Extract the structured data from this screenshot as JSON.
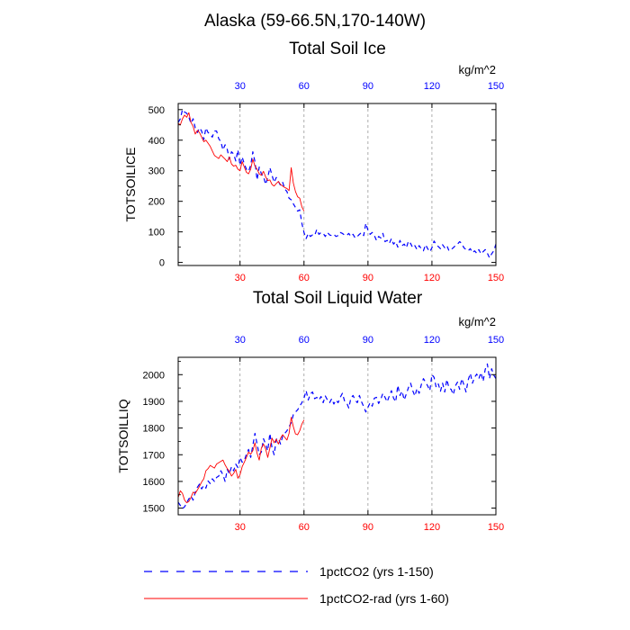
{
  "figure": {
    "title": "Alaska (59-66.5N,170-140W)"
  },
  "legend": {
    "placement": "bottom-left",
    "items": [
      {
        "label": "1pctCO2 (yrs 1-150)",
        "color": "#0000ff",
        "dash": "dashed"
      },
      {
        "label": "1pctCO2-rad (yrs 1-60)",
        "color": "#ff0000",
        "dash": "solid"
      }
    ]
  },
  "colors": {
    "bottom_ticks": "#ff0000",
    "top_ticks": "#0000ff",
    "gridline": "#999999"
  },
  "chart_data": [
    {
      "type": "line",
      "title": "Total Soil Ice",
      "ylabel": "TOTSOILICE",
      "units": "kg/m^2",
      "xlim": [
        1,
        150
      ],
      "ylim": [
        -10,
        520
      ],
      "xticks": [
        30,
        60,
        90,
        120,
        150
      ],
      "yticks": [
        0,
        100,
        200,
        300,
        400,
        500
      ],
      "grid": "vertical dashed at x ticks",
      "series": [
        {
          "name": "1pctCO2 (yrs 1-150)",
          "color": "#0000ff",
          "dash": "dashed",
          "x_start": 1,
          "values": [
            458,
            470,
            500,
            492,
            488,
            475,
            455,
            470,
            440,
            425,
            440,
            430,
            402,
            440,
            425,
            420,
            410,
            430,
            430,
            405,
            395,
            368,
            385,
            370,
            338,
            362,
            355,
            332,
            368,
            318,
            345,
            322,
            305,
            298,
            318,
            362,
            330,
            270,
            312,
            290,
            282,
            255,
            278,
            310,
            285,
            262,
            278,
            265,
            252,
            262,
            240,
            232,
            210,
            205,
            192,
            180,
            168,
            172,
            128,
            98,
            78,
            95,
            85,
            90,
            88,
            108,
            92,
            98,
            95,
            85,
            98,
            90,
            88,
            92,
            85,
            88,
            98,
            95,
            90,
            88,
            95,
            85,
            92,
            80,
            85,
            92,
            98,
            88,
            128,
            105,
            92,
            98,
            88,
            72,
            85,
            80,
            95,
            68,
            72,
            62,
            78,
            60,
            68,
            50,
            72,
            55,
            60,
            48,
            70,
            62,
            48,
            55,
            42,
            55,
            45,
            38,
            58,
            45,
            35,
            48,
            70,
            58,
            52,
            45,
            58,
            48,
            55,
            38,
            42,
            48,
            55,
            60,
            68,
            62,
            48,
            42,
            38,
            45,
            32,
            38,
            30,
            42,
            28,
            35,
            42,
            30,
            15,
            28,
            38,
            60
          ]
        },
        {
          "name": "1pctCO2-rad (yrs 1-60)",
          "color": "#ff0000",
          "dash": "solid",
          "x_start": 1,
          "values": [
            455,
            450,
            470,
            482,
            475,
            490,
            458,
            445,
            420,
            432,
            425,
            410,
            395,
            400,
            390,
            380,
            365,
            350,
            345,
            340,
            352,
            345,
            338,
            330,
            345,
            322,
            315,
            318,
            305,
            300,
            330,
            312,
            295,
            290,
            305,
            338,
            315,
            305,
            290,
            285,
            298,
            280,
            268,
            270,
            255,
            250,
            258,
            265,
            255,
            250,
            245,
            242,
            235,
            310,
            260,
            232,
            215,
            210,
            182,
            168
          ]
        }
      ]
    },
    {
      "type": "line",
      "title": "Total Soil Liquid Water",
      "ylabel": "TOTSOILLIQ",
      "units": "kg/m^2",
      "xlim": [
        1,
        150
      ],
      "ylim": [
        1475,
        2065
      ],
      "xticks": [
        30,
        60,
        90,
        120,
        150
      ],
      "yticks": [
        1500,
        1600,
        1700,
        1800,
        1900,
        2000
      ],
      "grid": "vertical dashed at x ticks",
      "series": [
        {
          "name": "1pctCO2 (yrs 1-150)",
          "color": "#0000ff",
          "dash": "dashed",
          "x_start": 1,
          "values": [
            1522,
            1510,
            1498,
            1505,
            1520,
            1535,
            1545,
            1530,
            1560,
            1578,
            1590,
            1572,
            1585,
            1575,
            1602,
            1592,
            1610,
            1600,
            1615,
            1620,
            1640,
            1625,
            1600,
            1645,
            1628,
            1655,
            1640,
            1665,
            1652,
            1690,
            1672,
            1678,
            1702,
            1720,
            1690,
            1735,
            1780,
            1740,
            1700,
            1710,
            1760,
            1740,
            1715,
            1780,
            1725,
            1700,
            1758,
            1762,
            1740,
            1770,
            1780,
            1790,
            1805,
            1820,
            1850,
            1860,
            1868,
            1882,
            1895,
            1912,
            1940,
            1905,
            1928,
            1935,
            1910,
            1915,
            1905,
            1918,
            1895,
            1920,
            1905,
            1895,
            1910,
            1890,
            1905,
            1895,
            1915,
            1930,
            1902,
            1895,
            1875,
            1912,
            1922,
            1905,
            1895,
            1922,
            1898,
            1880,
            1860,
            1878,
            1895,
            1882,
            1912,
            1915,
            1892,
            1908,
            1930,
            1915,
            1898,
            1920,
            1940,
            1912,
            1898,
            1960,
            1922,
            1938,
            1905,
            1928,
            1952,
            1968,
            1940,
            1920,
            1948,
            1930,
            1962,
            1985,
            1972,
            1958,
            1940,
            2000,
            1990,
            1952,
            1965,
            1938,
            1968,
            1935,
            1982,
            1950,
            1945,
            1925,
            1958,
            1972,
            1945,
            1985,
            1962,
            1935,
            1980,
            2005,
            1968,
            1990,
            2002,
            1985,
            2008,
            1975,
            2020,
            2040,
            1985,
            2022,
            1998,
            1985
          ]
        },
        {
          "name": "1pctCO2-rad (yrs 1-60)",
          "color": "#ff0000",
          "dash": "solid",
          "x_start": 1,
          "values": [
            1540,
            1565,
            1555,
            1530,
            1520,
            1525,
            1540,
            1560,
            1555,
            1568,
            1582,
            1598,
            1610,
            1640,
            1648,
            1660,
            1655,
            1650,
            1665,
            1670,
            1675,
            1680,
            1662,
            1648,
            1638,
            1620,
            1630,
            1645,
            1612,
            1625,
            1655,
            1672,
            1690,
            1710,
            1702,
            1715,
            1745,
            1705,
            1680,
            1725,
            1740,
            1722,
            1690,
            1725,
            1762,
            1745,
            1758,
            1740,
            1762,
            1775,
            1765,
            1755,
            1780,
            1840,
            1805,
            1778,
            1775,
            1790,
            1815,
            1830
          ]
        }
      ]
    }
  ]
}
